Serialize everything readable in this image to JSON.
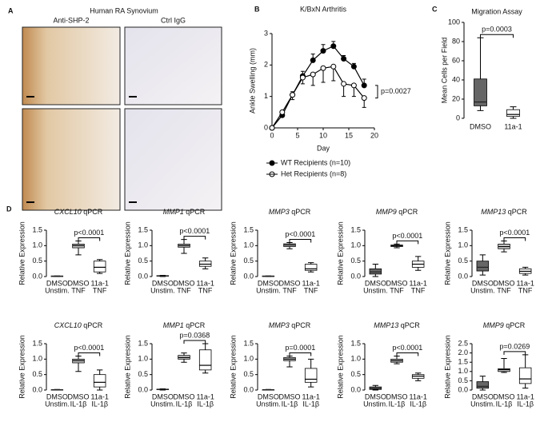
{
  "chart_data": [
    {
      "type": "image",
      "panel": "A",
      "title": "Human RA Synovium",
      "columns": [
        "Anti-SHP-2",
        "Ctrl IgG"
      ]
    },
    {
      "type": "line",
      "panel": "B",
      "title": "K/BxN Arthritis",
      "xlabel": "Day",
      "ylabel": "Ankle Swelling (mm)",
      "x": [
        0,
        2,
        4,
        6,
        8,
        10,
        12,
        14,
        16,
        18
      ],
      "xlim": [
        0,
        20
      ],
      "xticks": [
        0,
        5,
        10,
        15,
        20
      ],
      "ylim": [
        0,
        3
      ],
      "yticks": [
        0,
        1,
        2,
        3
      ],
      "annotation": "p=0.0027",
      "series": [
        {
          "name": "WT Recipients (n=10)",
          "color": "#000000",
          "fill": "#000000",
          "values": [
            0,
            0.4,
            1.05,
            1.65,
            2.15,
            2.45,
            2.6,
            2.2,
            1.95,
            1.35
          ],
          "errors": [
            0,
            0.1,
            0.1,
            0.15,
            0.2,
            0.2,
            0.15,
            0.1,
            0.1,
            0.2
          ]
        },
        {
          "name": "Het Recipients (n=8)",
          "color": "#000000",
          "fill": "#ffffff",
          "values": [
            0,
            0.5,
            1.05,
            1.6,
            1.7,
            1.9,
            1.95,
            1.4,
            1.35,
            0.95
          ],
          "errors": [
            0,
            0.1,
            0.15,
            0.2,
            0.35,
            0.45,
            0.45,
            0.4,
            0.35,
            0.3
          ]
        }
      ]
    },
    {
      "type": "box",
      "panel": "C",
      "title": "Migration Assay",
      "ylabel": "Mean Cells per Field",
      "categories": [
        "DMSO",
        "11a-1"
      ],
      "colors": [
        "#666666",
        "#ffffff"
      ],
      "values": [
        [
          8,
          13,
          17,
          41,
          84
        ],
        [
          0,
          2,
          4,
          9,
          12
        ]
      ],
      "ylim": [
        0,
        100
      ],
      "yticks": [
        0,
        20,
        40,
        60,
        80,
        100
      ],
      "annotation": "p=0.0003"
    },
    {
      "type": "box",
      "panel": "D",
      "title": "CXCL10 qPCR",
      "ylabel": "Relative Expression",
      "categories": [
        [
          "DMSO",
          "Unstim."
        ],
        [
          "DMSO",
          "TNF"
        ],
        [
          "11a-1",
          "TNF"
        ]
      ],
      "colors": [
        "#666666",
        "#cccccc",
        "#ffffff"
      ],
      "values": [
        [
          0,
          0,
          0.01,
          0.02,
          0.02
        ],
        [
          0.7,
          0.93,
          1.0,
          1.05,
          1.15
        ],
        [
          0.1,
          0.15,
          0.3,
          0.5,
          0.55
        ]
      ],
      "ylim": [
        0,
        1.5
      ],
      "yticks": [
        {
          "value": 0,
          "label": "0.0"
        },
        0.5,
        {
          "value": 1,
          "label": "1.0"
        },
        1.5
      ],
      "annotation": "p<0.0001"
    },
    {
      "type": "box",
      "title": "MMP1 qPCR",
      "ylabel": "Relative Expression",
      "categories": [
        [
          "DMSO",
          "Unstim."
        ],
        [
          "DMSO",
          "TNF"
        ],
        [
          "11a-1",
          "TNF"
        ]
      ],
      "colors": [
        "#666666",
        "#cccccc",
        "#ffffff"
      ],
      "values": [
        [
          0,
          0.01,
          0.02,
          0.03,
          0.04
        ],
        [
          0.75,
          0.95,
          1.0,
          1.05,
          1.2
        ],
        [
          0.25,
          0.33,
          0.4,
          0.5,
          0.6
        ]
      ],
      "ylim": [
        0,
        1.5
      ],
      "yticks": [
        {
          "value": 0,
          "label": "0.0"
        },
        0.5,
        {
          "value": 1,
          "label": "1.0"
        },
        1.5
      ],
      "annotation": "p<0.0001"
    },
    {
      "type": "box",
      "title": "MMP3 qPCR",
      "ylabel": "Relative Expression",
      "categories": [
        [
          "DMSO",
          "Unstim."
        ],
        [
          "DMSO",
          "TNF"
        ],
        [
          "11a-1",
          "TNF"
        ]
      ],
      "colors": [
        "#666666",
        "#cccccc",
        "#ffffff"
      ],
      "values": [
        [
          0,
          0,
          0.01,
          0.02,
          0.02
        ],
        [
          0.9,
          0.97,
          1.02,
          1.06,
          1.1
        ],
        [
          0.15,
          0.2,
          0.25,
          0.4,
          0.45
        ]
      ],
      "ylim": [
        0,
        1.5
      ],
      "yticks": [
        {
          "value": 0,
          "label": "0.0"
        },
        0.5,
        {
          "value": 1,
          "label": "1.0"
        },
        1.5
      ],
      "annotation": "p<0.0001"
    },
    {
      "type": "box",
      "title": "MMP9 qPCR",
      "ylabel": "Relative Expression",
      "categories": [
        [
          "DMSO",
          "Unstim."
        ],
        [
          "DMSO",
          "TNF"
        ],
        [
          "11a-1",
          "TNF"
        ]
      ],
      "colors": [
        "#666666",
        "#cccccc",
        "#ffffff"
      ],
      "values": [
        [
          0,
          0.08,
          0.15,
          0.25,
          0.4
        ],
        [
          0.93,
          0.97,
          1.0,
          1.02,
          1.05
        ],
        [
          0.2,
          0.3,
          0.4,
          0.5,
          0.65
        ]
      ],
      "ylim": [
        0,
        1.5
      ],
      "yticks": [
        {
          "value": 0,
          "label": "0.0"
        },
        0.5,
        {
          "value": 1,
          "label": "1.0"
        },
        1.5
      ],
      "annotation": "p<0.0001"
    },
    {
      "type": "box",
      "title": "MMP13 qPCR",
      "ylabel": "Relative Expression",
      "categories": [
        [
          "DMSO",
          "Unstim."
        ],
        [
          "DMSO",
          "TNF"
        ],
        [
          "11a-1",
          "TNF"
        ]
      ],
      "colors": [
        "#666666",
        "#cccccc",
        "#ffffff"
      ],
      "values": [
        [
          0.05,
          0.18,
          0.3,
          0.5,
          0.7
        ],
        [
          0.8,
          0.9,
          0.97,
          1.05,
          1.15
        ],
        [
          0.05,
          0.1,
          0.17,
          0.25,
          0.3
        ]
      ],
      "ylim": [
        0,
        1.5
      ],
      "yticks": [
        {
          "value": 0,
          "label": "0.0"
        },
        0.5,
        {
          "value": 1,
          "label": "1.0"
        },
        1.5
      ],
      "annotation": "p<0.0001"
    },
    {
      "type": "box",
      "title": "CXCL10 qPCR",
      "ylabel": "Relative Expression",
      "categories": [
        [
          "DMSO",
          "Unstim."
        ],
        [
          "DMSO",
          "IL-1β"
        ],
        [
          "11a-1",
          "IL-1β"
        ]
      ],
      "colors": [
        "#666666",
        "#cccccc",
        "#ffffff"
      ],
      "values": [
        [
          0,
          0,
          0.01,
          0.01,
          0.02
        ],
        [
          0.6,
          0.88,
          0.95,
          1.0,
          1.1
        ],
        [
          0,
          0.1,
          0.25,
          0.5,
          0.65
        ]
      ],
      "ylim": [
        0,
        1.5
      ],
      "yticks": [
        {
          "value": 0,
          "label": "0.0"
        },
        0.5,
        {
          "value": 1,
          "label": "1.0"
        },
        1.5
      ],
      "annotation": "p<0.0001"
    },
    {
      "type": "box",
      "title": "MMP1 qPCR",
      "ylabel": "Relative Expression",
      "categories": [
        [
          "DMSO",
          "Unstim."
        ],
        [
          "DMSO",
          "IL-1β"
        ],
        [
          "11a-1",
          "IL-1β"
        ]
      ],
      "colors": [
        "#666666",
        "#cccccc",
        "#ffffff"
      ],
      "values": [
        [
          0,
          0.01,
          0.02,
          0.03,
          0.04
        ],
        [
          0.9,
          1.0,
          1.05,
          1.12,
          1.2
        ],
        [
          0.55,
          0.65,
          0.8,
          1.3,
          1.5
        ]
      ],
      "ylim": [
        0,
        1.5
      ],
      "yticks": [
        {
          "value": 0,
          "label": "0.0"
        },
        0.5,
        {
          "value": 1,
          "label": "1.0"
        },
        1.5
      ],
      "annotation": "p=0.0368"
    },
    {
      "type": "box",
      "title": "MMP3 qPCR",
      "ylabel": "Relative Expression",
      "categories": [
        [
          "DMSO",
          "Unstim."
        ],
        [
          "DMSO",
          "IL-1β"
        ],
        [
          "11a-1",
          "IL-1β"
        ]
      ],
      "colors": [
        "#666666",
        "#cccccc",
        "#ffffff"
      ],
      "values": [
        [
          0,
          0,
          0.01,
          0.01,
          0.02
        ],
        [
          0.75,
          0.95,
          1.0,
          1.05,
          1.1
        ],
        [
          0.1,
          0.25,
          0.35,
          0.7,
          1.0
        ]
      ],
      "ylim": [
        0,
        1.5
      ],
      "yticks": [
        {
          "value": 0,
          "label": "0.0"
        },
        0.5,
        {
          "value": 1,
          "label": "1.0"
        },
        1.5
      ],
      "annotation": "p=0.0001"
    },
    {
      "type": "box",
      "title": "MMP13 qPCR",
      "ylabel": "Relative Expression",
      "categories": [
        [
          "DMSO",
          "Unstim."
        ],
        [
          "DMSO",
          "IL-1β"
        ],
        [
          "11a-1",
          "IL-1β"
        ]
      ],
      "colors": [
        "#666666",
        "#cccccc",
        "#ffffff"
      ],
      "values": [
        [
          0,
          0.02,
          0.05,
          0.1,
          0.15
        ],
        [
          0.85,
          0.9,
          0.95,
          1.0,
          1.1
        ],
        [
          0.3,
          0.38,
          0.45,
          0.5,
          0.55
        ]
      ],
      "ylim": [
        0,
        1.5
      ],
      "yticks": [
        {
          "value": 0,
          "label": "0.0"
        },
        0.5,
        {
          "value": 1,
          "label": "1.0"
        },
        1.5
      ],
      "annotation": "p<0.0001"
    },
    {
      "type": "box",
      "title": "MMP9 qPCR",
      "ylabel": "Relative Expression",
      "categories": [
        [
          "DMSO",
          "Unstim."
        ],
        [
          "DMSO",
          "IL-1β"
        ],
        [
          "11a-1",
          "IL-1β"
        ]
      ],
      "colors": [
        "#666666",
        "#cccccc",
        "#ffffff"
      ],
      "values": [
        [
          0,
          0.1,
          0.2,
          0.45,
          0.75
        ],
        [
          0.95,
          1.0,
          1.1,
          1.15,
          1.7
        ],
        [
          0.1,
          0.35,
          0.6,
          1.2,
          1.9
        ]
      ],
      "ylim": [
        0,
        2.5
      ],
      "yticks": [
        {
          "value": 0,
          "label": "0.0"
        },
        0.5,
        {
          "value": 1,
          "label": "1.0"
        },
        1.5,
        {
          "value": 2,
          "label": "2.0"
        },
        2.5
      ],
      "annotation": "p=0.0269"
    }
  ]
}
